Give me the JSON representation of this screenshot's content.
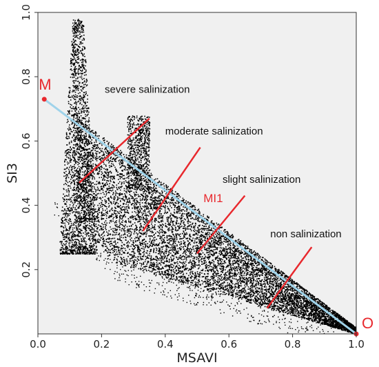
{
  "chart_data": {
    "type": "scatter",
    "xlabel": "MSAVI",
    "ylabel": "SI3",
    "xlim": [
      0.0,
      1.0
    ],
    "ylim": [
      0.0,
      1.0
    ],
    "x_ticks": [
      "0.0",
      "0.2",
      "0.4",
      "0.6",
      "0.8",
      "1.0"
    ],
    "y_ticks": [
      "0.2",
      "0.4",
      "0.6",
      "0.8",
      "1.0"
    ],
    "grid": false,
    "point_color": "#000000",
    "plot_background": "#f0f0f0",
    "annotation_color": "#e8282d",
    "trend_line": {
      "color": "#9fd3ea",
      "from": [
        0.02,
        0.73
      ],
      "to": [
        1.0,
        0.0
      ]
    },
    "points": [
      {
        "label": "M",
        "x": 0.02,
        "y": 0.73
      },
      {
        "label": "O",
        "x": 1.0,
        "y": 0.0
      }
    ],
    "line_label": {
      "text": "MI1",
      "x": 0.52,
      "y": 0.41
    },
    "zones": [
      {
        "label": "severe salinization",
        "label_x": 0.21,
        "label_y": 0.75,
        "divider": [
          [
            0.13,
            0.47
          ],
          [
            0.35,
            0.67
          ]
        ]
      },
      {
        "label": "moderate salinization",
        "label_x": 0.4,
        "label_y": 0.62,
        "divider": [
          [
            0.33,
            0.32
          ],
          [
            0.51,
            0.58
          ]
        ]
      },
      {
        "label": "slight salinization",
        "label_x": 0.58,
        "label_y": 0.47,
        "divider": [
          [
            0.5,
            0.25
          ],
          [
            0.65,
            0.43
          ]
        ]
      },
      {
        "label": "non salinization",
        "label_x": 0.73,
        "label_y": 0.3,
        "divider": [
          [
            0.72,
            0.08
          ],
          [
            0.86,
            0.27
          ]
        ]
      }
    ]
  }
}
